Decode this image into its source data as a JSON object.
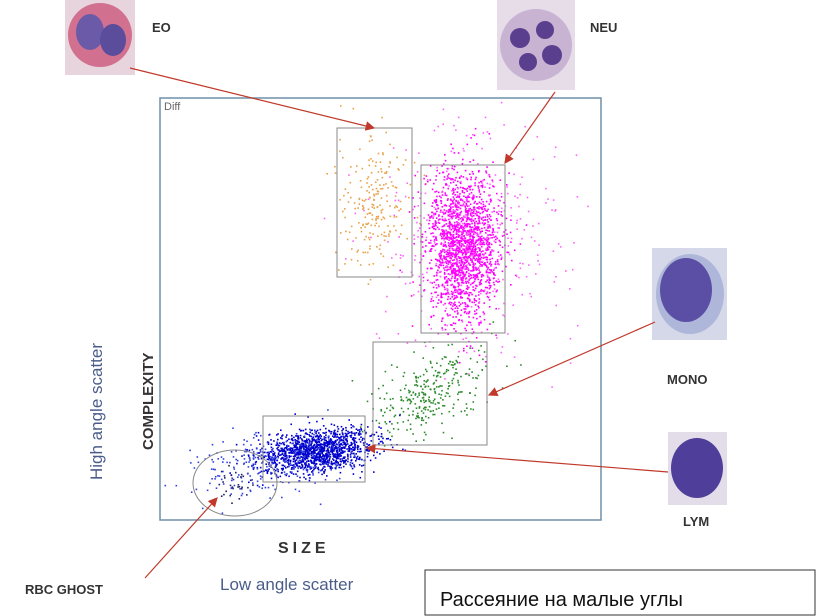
{
  "plot": {
    "label": "Diff",
    "x_label": "SIZE",
    "x_sublabel": "Low angle scatter",
    "y_label": "COMPLEXITY",
    "y_sublabel": "High angle scatter"
  },
  "cells": [
    {
      "label": "EO"
    },
    {
      "label": "NEU"
    },
    {
      "label": "MONO"
    },
    {
      "label": "LYM"
    },
    {
      "label": "RBC GHOST"
    }
  ],
  "note": "Рассеяние на малые углы"
}
